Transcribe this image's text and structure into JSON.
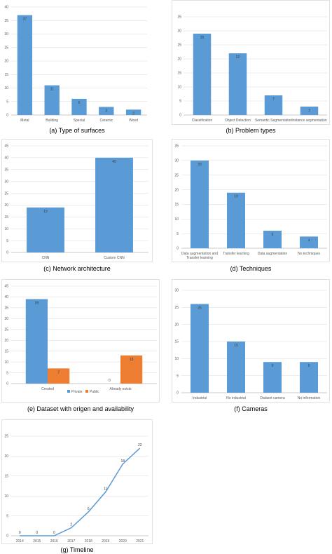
{
  "colors": {
    "bar": "#5b9bd5",
    "bar_alt": "#ed7d31",
    "grid": "#d9d9d9",
    "axis": "#bfbfbf"
  },
  "chart_data": [
    {
      "id": "a",
      "type": "bar",
      "caption": "(a) Type of surfaces",
      "categories": [
        "Metal",
        "Building",
        "Special",
        "Ceramic",
        "Wood"
      ],
      "values": [
        37,
        11,
        6,
        3,
        2
      ],
      "ylim": [
        0,
        40
      ],
      "yticks": [
        0,
        5,
        10,
        15,
        20,
        25,
        30,
        35,
        40
      ]
    },
    {
      "id": "b",
      "type": "bar",
      "caption": "(b) Problem types",
      "categories": [
        "Classification",
        "Object Detection",
        "Semantic Segmentation",
        "Instance segmentation"
      ],
      "values": [
        29,
        22,
        7,
        3
      ],
      "ylim": [
        0,
        35
      ],
      "yticks": [
        0,
        5,
        10,
        15,
        20,
        25,
        30,
        35
      ]
    },
    {
      "id": "c",
      "type": "bar",
      "caption": "(c) Network architecture",
      "categories": [
        "CNN",
        "Custom CNN"
      ],
      "values": [
        19,
        40
      ],
      "ylim": [
        0,
        45
      ],
      "yticks": [
        0,
        5,
        10,
        15,
        20,
        25,
        30,
        35,
        40,
        45
      ]
    },
    {
      "id": "d",
      "type": "bar",
      "caption": "(d) Techniques",
      "categories": [
        [
          "Data augmentation and",
          "Transfer learning"
        ],
        [
          "Transfer learning"
        ],
        [
          "Data augmentation"
        ],
        [
          "No techniques"
        ]
      ],
      "values": [
        30,
        19,
        6,
        4
      ],
      "ylim": [
        0,
        35
      ],
      "yticks": [
        0,
        5,
        10,
        15,
        20,
        25,
        30,
        35
      ]
    },
    {
      "id": "e",
      "type": "bar",
      "caption": "(e) Dataset with origen and availability",
      "categories": [
        "Created",
        "Already exists"
      ],
      "series": [
        {
          "name": "Private",
          "values": [
            39,
            0
          ]
        },
        {
          "name": "Public",
          "values": [
            7,
            13
          ]
        }
      ],
      "legend": "bottom",
      "ylim": [
        0,
        45
      ],
      "yticks": [
        0,
        5,
        10,
        15,
        20,
        25,
        30,
        35,
        40,
        45
      ]
    },
    {
      "id": "f",
      "type": "bar",
      "caption": "(f) Cameras",
      "categories": [
        "Industrial",
        "No industrial",
        "Dataset camera",
        "No information"
      ],
      "values": [
        26,
        15,
        9,
        9
      ],
      "ylim": [
        0,
        30
      ],
      "yticks": [
        0,
        5,
        10,
        15,
        20,
        25,
        30
      ]
    },
    {
      "id": "g",
      "type": "line",
      "caption": "(g) Timeline",
      "x": [
        "2014",
        "2015",
        "2016",
        "2017",
        "2018",
        "2019",
        "2020",
        "2021"
      ],
      "values": [
        0,
        0,
        0,
        2,
        6,
        11,
        18,
        22
      ],
      "ylim": [
        0,
        25
      ],
      "yticks": [
        0,
        5,
        10,
        15,
        20,
        25
      ]
    }
  ]
}
